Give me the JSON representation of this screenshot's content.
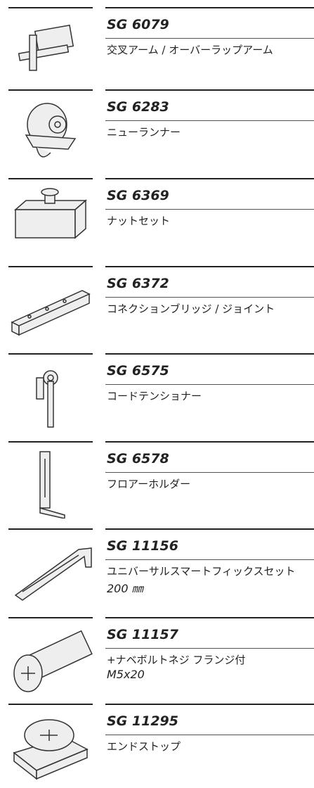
{
  "items": [
    {
      "code": "SG 6079",
      "description": "交叉アーム / オーバーラップアーム"
    },
    {
      "code": "SG 6283",
      "description": "ニューランナー"
    },
    {
      "code": "SG 6369",
      "description": "ナットセット"
    },
    {
      "code": "SG 6372",
      "description": "コネクションブリッジ / ジョイント"
    },
    {
      "code": "SG 6575",
      "description": "コードテンショナー"
    },
    {
      "code": "SG 6578",
      "description": "フロアーホルダー"
    },
    {
      "code": "SG 11156",
      "description": "ユニバーサルスマートフィックスセット",
      "detail": "200 ㎜"
    },
    {
      "code": "SG 11157",
      "description": "+ナベボルトネジ フランジ付",
      "detail": "M5x20"
    },
    {
      "code": "SG 11295",
      "description": "エンドストップ"
    }
  ]
}
